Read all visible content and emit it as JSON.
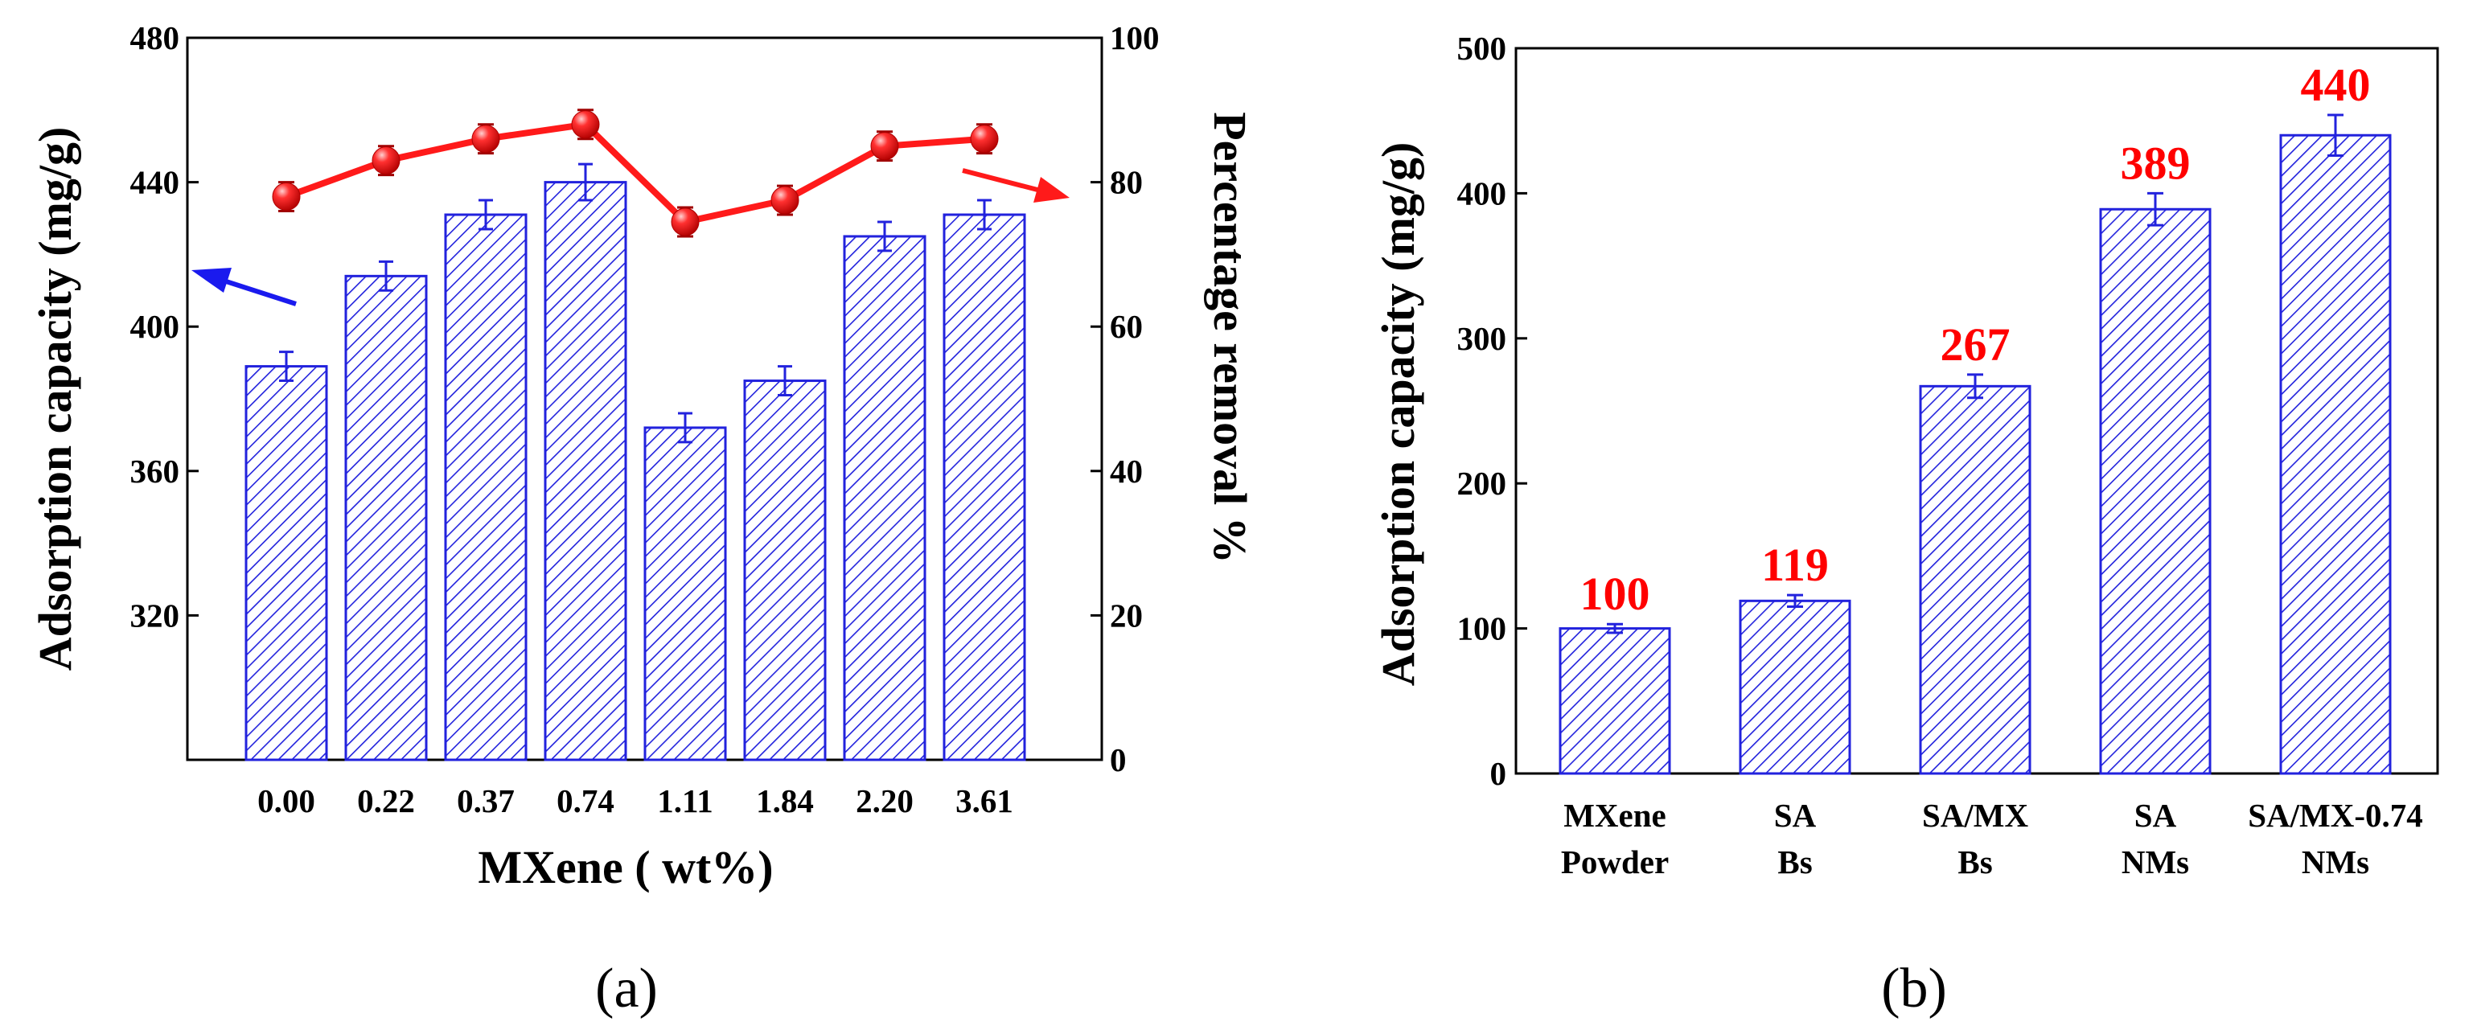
{
  "chart_data": [
    {
      "panel": "(a)",
      "type": "bar+line",
      "xlabel": "MXene ( wt%)",
      "ylabel_left": "Adsorption capacity (mg/g)",
      "ylabel_right": "Percentage  removal %",
      "categories": [
        "0.00",
        "0.22",
        "0.37",
        "0.74",
        "1.11",
        "1.84",
        "2.20",
        "3.61"
      ],
      "left_axis": {
        "ylim": [
          280,
          480
        ],
        "ticks": [
          320,
          360,
          400,
          440,
          480
        ]
      },
      "right_axis": {
        "ylim": [
          0,
          100
        ],
        "ticks": [
          0,
          20,
          40,
          60,
          80,
          100
        ]
      },
      "series": [
        {
          "name": "Adsorption capacity",
          "type": "bar",
          "axis": "left",
          "color": "#2222dd",
          "values": [
            389,
            414,
            431,
            440,
            372,
            385,
            425,
            431
          ],
          "errors": [
            4,
            4,
            4,
            5,
            4,
            4,
            4,
            4
          ]
        },
        {
          "name": "Percentage removal",
          "type": "line",
          "axis": "right",
          "color": "#ff1a1a",
          "values": [
            78,
            83,
            86,
            88,
            74.5,
            77.5,
            85,
            86
          ],
          "errors": [
            2,
            2,
            2,
            2,
            2,
            2,
            2,
            2
          ]
        }
      ],
      "arrows": [
        {
          "points_to": "left axis",
          "color": "#1a1aee"
        },
        {
          "points_to": "right axis",
          "color": "#ff1a1a"
        }
      ]
    },
    {
      "panel": "(b)",
      "type": "bar",
      "ylabel": "Adsorption capacity (mg/g)",
      "ylim": [
        0,
        500
      ],
      "yticks": [
        0,
        100,
        200,
        300,
        400,
        500
      ],
      "categories": [
        [
          "MXene",
          "Powder"
        ],
        [
          "SA",
          "Bs"
        ],
        [
          "SA/MX",
          "Bs"
        ],
        [
          "SA",
          "NMs"
        ],
        [
          "SA/MX-0.74",
          "NMs"
        ]
      ],
      "values": [
        100,
        119,
        267,
        389,
        440
      ],
      "errors": [
        3,
        4,
        8,
        11,
        14
      ],
      "data_labels": [
        "100",
        "119",
        "267",
        "389",
        "440"
      ],
      "color": "#2222dd",
      "label_color": "#ff0000"
    }
  ],
  "panel_labels": {
    "a": "(a)",
    "b": "(b)"
  }
}
